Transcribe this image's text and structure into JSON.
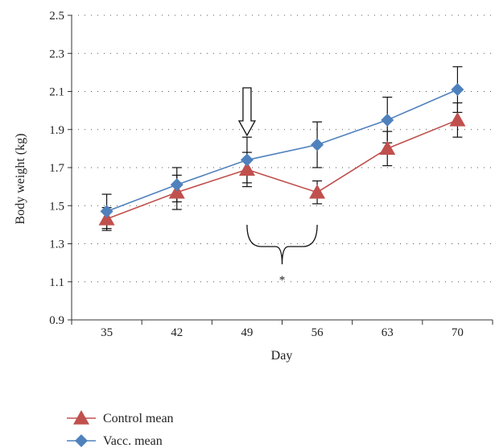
{
  "chart_data": {
    "type": "line",
    "title": "",
    "xlabel": "Day",
    "ylabel": "Body weight (kg)",
    "categories": [
      35,
      42,
      49,
      56,
      63,
      70
    ],
    "ylim": [
      0.9,
      2.5
    ],
    "yticks": [
      "0.9",
      "1.1",
      "1.3",
      "1.5",
      "1.7",
      "1.9",
      "2.1",
      "2.3",
      "2.5"
    ],
    "grid": "horizontal-dotted",
    "legend_position": "bottom-left",
    "series": [
      {
        "name": "Control mean",
        "marker": "triangle",
        "color": "#c0504d",
        "values": [
          1.43,
          1.57,
          1.69,
          1.57,
          1.8,
          1.95
        ],
        "error": [
          0.06,
          0.09,
          0.09,
          0.06,
          0.09,
          0.09
        ]
      },
      {
        "name": "Vacc. mean",
        "marker": "diamond",
        "color": "#4f81bd",
        "values": [
          1.47,
          1.61,
          1.74,
          1.82,
          1.95,
          2.11
        ],
        "error": [
          0.09,
          0.09,
          0.12,
          0.12,
          0.12,
          0.12
        ]
      }
    ],
    "annotations": {
      "arrow_day": 49,
      "brace_start_day": 49,
      "brace_end_day": 56,
      "significance": "*"
    }
  }
}
